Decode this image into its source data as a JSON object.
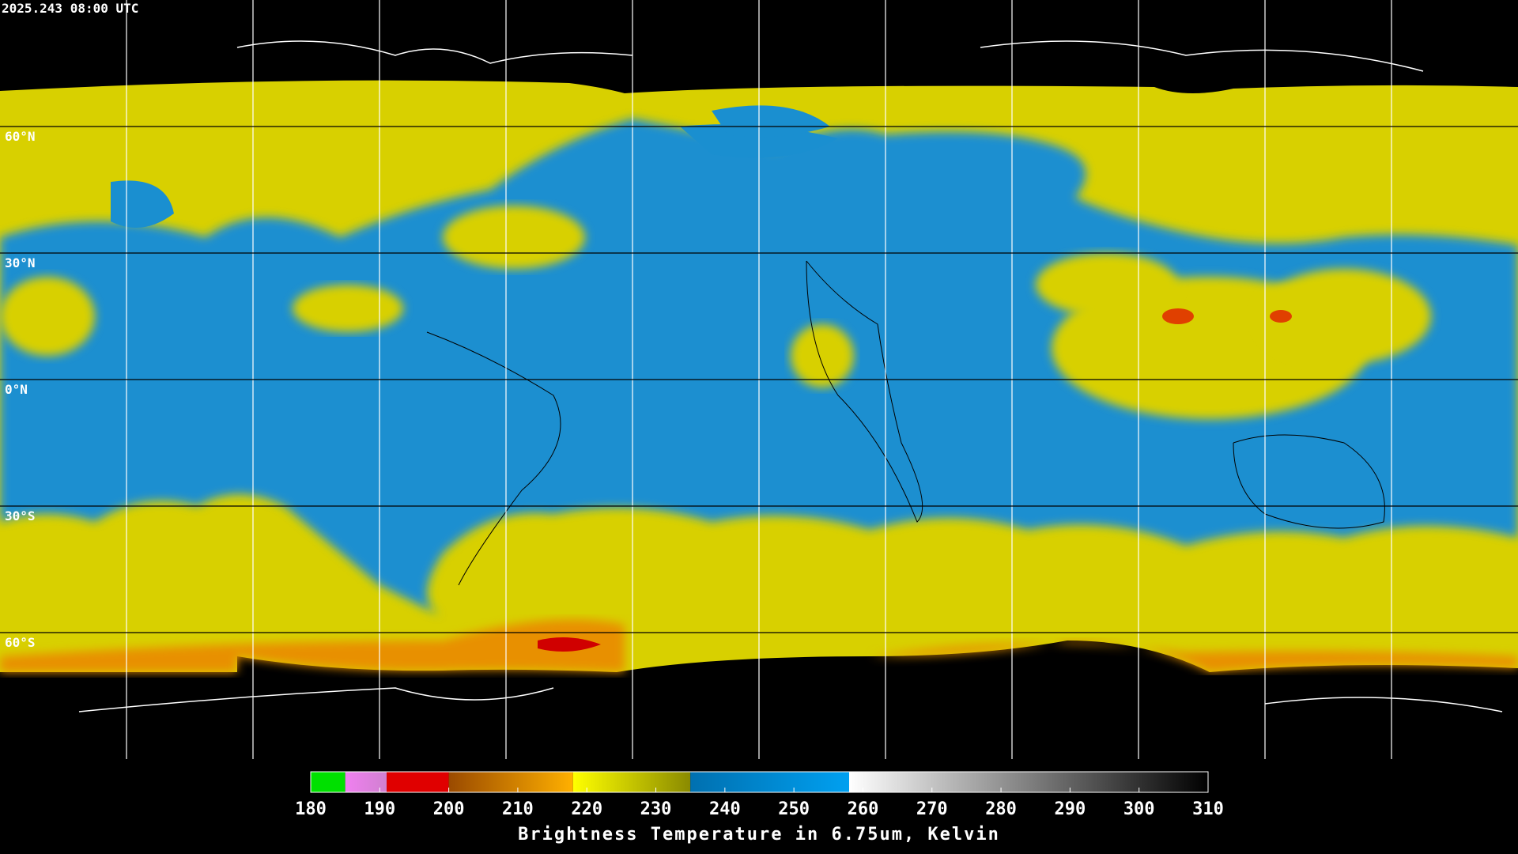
{
  "header": {
    "timestamp": "2025.243 08:00 UTC"
  },
  "map": {
    "lat_labels": [
      "60°N",
      "30°N",
      "0°N",
      "30°S",
      "60°S"
    ]
  },
  "colorbar": {
    "range": [
      180,
      310
    ],
    "ticks": [
      180,
      190,
      200,
      210,
      220,
      230,
      240,
      250,
      260,
      270,
      280,
      290,
      300,
      310
    ],
    "segments": [
      {
        "from": 180,
        "to": 185,
        "colors": [
          "#00e000",
          "#00e000"
        ]
      },
      {
        "from": 185,
        "to": 191,
        "colors": [
          "#f080f0",
          "#d080d0"
        ]
      },
      {
        "from": 191,
        "to": 200,
        "colors": [
          "#e00000",
          "#e00000"
        ]
      },
      {
        "from": 200,
        "to": 218,
        "colors": [
          "#9a4a00",
          "#ffb000"
        ]
      },
      {
        "from": 218,
        "to": 235,
        "colors": [
          "#ffff00",
          "#8a8a00"
        ]
      },
      {
        "from": 235,
        "to": 258,
        "colors": [
          "#0070b0",
          "#00a0f0"
        ]
      },
      {
        "from": 258,
        "to": 310,
        "colors": [
          "#ffffff",
          "#000000"
        ]
      }
    ],
    "title": "Brightness Temperature in 6.75um, Kelvin"
  }
}
